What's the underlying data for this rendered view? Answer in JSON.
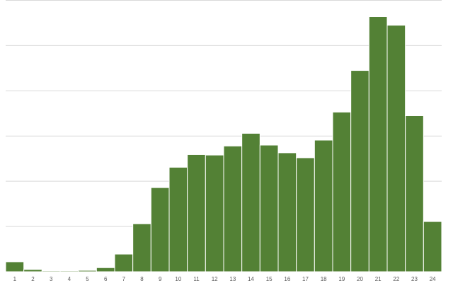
{
  "chart_data": {
    "type": "bar",
    "categories": [
      "1",
      "2",
      "3",
      "4",
      "5",
      "6",
      "7",
      "8",
      "9",
      "10",
      "11",
      "12",
      "13",
      "14",
      "15",
      "16",
      "17",
      "18",
      "19",
      "20",
      "21",
      "22",
      "23",
      "24"
    ],
    "values": [
      0.22,
      0.05,
      0.02,
      0.02,
      0.03,
      0.09,
      0.39,
      1.06,
      1.86,
      2.31,
      2.59,
      2.58,
      2.78,
      3.06,
      2.8,
      2.63,
      2.52,
      2.91,
      3.53,
      4.45,
      5.64,
      5.45,
      3.45,
      1.11
    ],
    "color": "#538135",
    "ylim": [
      0,
      6
    ],
    "gridlines": [
      0,
      1,
      2,
      3,
      4,
      5,
      6
    ],
    "grid": true
  }
}
